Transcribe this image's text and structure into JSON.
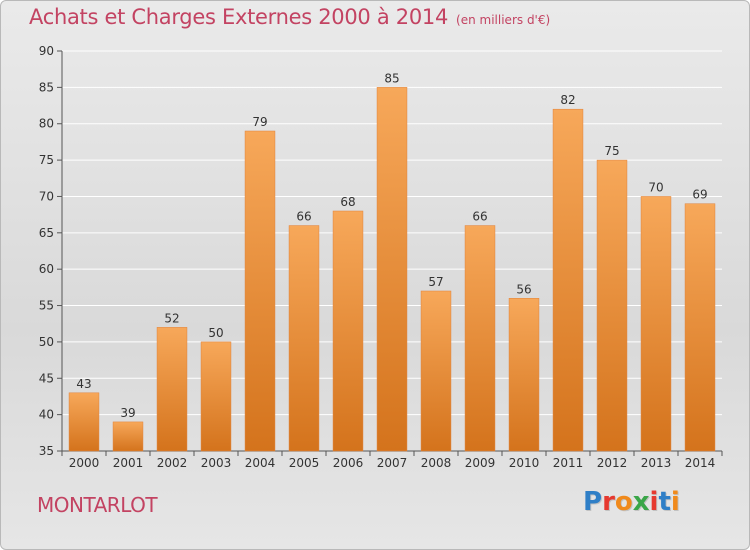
{
  "header": {
    "title": "Achats et Charges Externes 2000 à 2014",
    "unit": "(en milliers d'€)"
  },
  "footer": {
    "commune": "MONTARLOT",
    "logo_text": "Proxiti",
    "logo_colors": [
      "#2f7fc7",
      "#e6392f",
      "#f08a1c",
      "#3aa648",
      "#e6392f",
      "#2f7fc7",
      "#f08a1c"
    ]
  },
  "colors": {
    "bar_top": "#f7a85a",
    "bar_bottom": "#d4731c",
    "bar_edge": "#e0823a",
    "grid": "#ffffff",
    "axis": "#555555"
  },
  "chart_data": {
    "type": "bar",
    "categories": [
      "2000",
      "2001",
      "2002",
      "2003",
      "2004",
      "2005",
      "2006",
      "2007",
      "2008",
      "2009",
      "2010",
      "2011",
      "2012",
      "2013",
      "2014"
    ],
    "values": [
      43,
      39,
      52,
      50,
      79,
      66,
      68,
      85,
      57,
      66,
      56,
      82,
      75,
      70,
      69
    ],
    "ylim": [
      35,
      90
    ],
    "yticks": [
      35,
      40,
      45,
      50,
      55,
      60,
      65,
      70,
      75,
      80,
      85,
      90
    ],
    "grid": true,
    "title": "Achats et Charges Externes 2000 à 2014",
    "xlabel": "",
    "ylabel": ""
  }
}
